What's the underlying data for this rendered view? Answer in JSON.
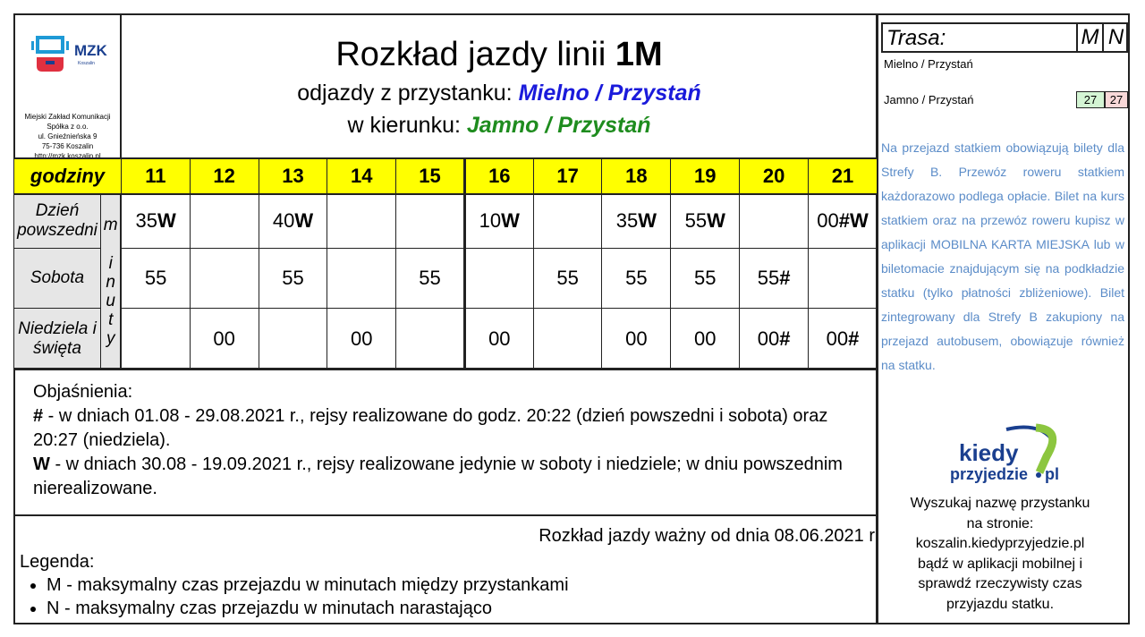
{
  "logo": {
    "brand": "MZK",
    "city": "Koszalin",
    "address": [
      "Miejski Zakład Komunikacji",
      "Spółka z o.o.",
      "ul. Gnieźnieńska 9",
      "75-736 Koszalin",
      "http://mzk.koszalin.pl"
    ]
  },
  "header": {
    "title_prefix": "Rozkład jazdy linii ",
    "line": "1M",
    "from_label": "odjazdy z przystanku: ",
    "from_stop": "Mielno / Przystań",
    "dir_label": "w kierunku: ",
    "dir_stop": "Jamno / Przystań"
  },
  "table": {
    "hours_label": "godziny",
    "minutes_label": [
      "m",
      "i",
      "n",
      "u",
      "t",
      "y"
    ],
    "hours": [
      "11",
      "12",
      "13",
      "14",
      "15",
      "16",
      "17",
      "18",
      "19",
      "20",
      "21"
    ],
    "rows": [
      {
        "label": "Dzień powszedni",
        "cells": [
          {
            "n": "35",
            "s": "W"
          },
          {
            "n": "",
            "s": ""
          },
          {
            "n": "40",
            "s": "W"
          },
          {
            "n": "",
            "s": ""
          },
          {
            "n": "",
            "s": ""
          },
          {
            "n": "10",
            "s": "W"
          },
          {
            "n": "",
            "s": ""
          },
          {
            "n": "35",
            "s": "W"
          },
          {
            "n": "55",
            "s": "W"
          },
          {
            "n": "",
            "s": ""
          },
          {
            "n": "00",
            "s": "#W"
          }
        ]
      },
      {
        "label": "Sobota",
        "cells": [
          {
            "n": "55",
            "s": ""
          },
          {
            "n": "",
            "s": ""
          },
          {
            "n": "55",
            "s": ""
          },
          {
            "n": "",
            "s": ""
          },
          {
            "n": "55",
            "s": ""
          },
          {
            "n": "",
            "s": ""
          },
          {
            "n": "55",
            "s": ""
          },
          {
            "n": "55",
            "s": ""
          },
          {
            "n": "55",
            "s": ""
          },
          {
            "n": "55",
            "s": "#"
          },
          {
            "n": "",
            "s": ""
          }
        ]
      },
      {
        "label": "Niedziela i święta",
        "cells": [
          {
            "n": "",
            "s": ""
          },
          {
            "n": "00",
            "s": ""
          },
          {
            "n": "",
            "s": ""
          },
          {
            "n": "00",
            "s": ""
          },
          {
            "n": "",
            "s": ""
          },
          {
            "n": "00",
            "s": ""
          },
          {
            "n": "",
            "s": ""
          },
          {
            "n": "00",
            "s": ""
          },
          {
            "n": "00",
            "s": ""
          },
          {
            "n": "00",
            "s": "#"
          },
          {
            "n": "00",
            "s": "#"
          }
        ]
      }
    ]
  },
  "explanations": {
    "title": "Objaśnienia:",
    "items": [
      {
        "sym": "#",
        "text": " - w dniach 01.08 - 29.08.2021 r., rejsy realizowane do godz. 20:22 (dzień powszedni i sobota) oraz 20:27 (niedziela)."
      },
      {
        "sym": "W",
        "text": " - w dniach 30.08 - 19.09.2021 r., rejsy realizowane jedynie w soboty i niedziele; w dniu powszednim nierealizowane."
      }
    ]
  },
  "valid_from": "Rozkład jazdy ważny od dnia 08.06.2021 r",
  "legend": {
    "title": "Legenda:",
    "items": [
      "M - maksymalny czas przejazdu w minutach między przystankami",
      "N - maksymalny czas przejazdu w minutach narastająco"
    ]
  },
  "route": {
    "title": "Trasa:",
    "col_m": "M",
    "col_n": "N",
    "stops": [
      {
        "name": "Mielno / Przystań",
        "m": "",
        "n": ""
      },
      {
        "name": "Jamno / Przystań",
        "m": "27",
        "n": "27"
      }
    ]
  },
  "info": "Na przejazd statkiem obowiązują bilety dla Strefy B. Przewóz roweru statkiem każdorazowo podlega opłacie. Bilet na kurs statkiem oraz na przewóz roweru kupisz w aplikacji MOBILNA KARTA MIEJSKA lub w biletomacie znajdującym się na podkładzie statku (tylko płatności zbliżeniowe). Bilet zintegrowany dla Strefy B zakupiony na przejazd autobusem, obowiązuje również na statku.",
  "kiedy": {
    "logo_line1": "kiedy",
    "logo_line2": "przyjedzie",
    "logo_tld": "pl",
    "search_text": [
      "Wyszukaj nazwę przystanku",
      "na stronie:",
      "koszalin.kiedyprzyjedzie.pl",
      "bądź w aplikacji mobilnej i",
      "sprawdź rzeczywisty czas",
      "przyjazdu statku."
    ]
  },
  "colors": {
    "hours_bg": "#ffff00",
    "from_stop": "#1a1adb",
    "dir_stop": "#1e8c1e",
    "info": "#5b8cc8",
    "m_cell": "#d4f5d4",
    "n_cell": "#f8d8d8"
  }
}
